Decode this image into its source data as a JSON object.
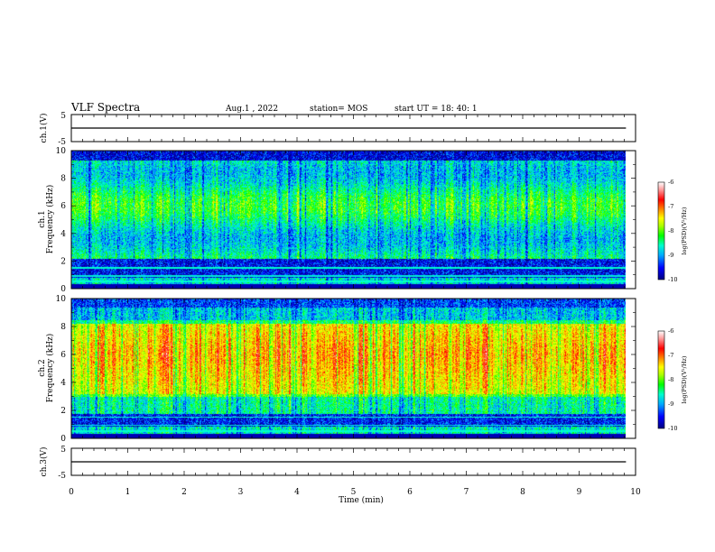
{
  "header": {
    "title": "VLF Spectra",
    "date": "Aug.1  , 2022",
    "station": "station= MOS",
    "start": "start  UT  =   18: 40: 1"
  },
  "chart_data": [
    {
      "type": "line",
      "id": "ch1-waveform",
      "ylabel": "ch.1(V)",
      "ylim": [
        -5,
        5
      ],
      "yticks": [
        "5",
        "-5"
      ],
      "x": [
        0,
        9.83
      ],
      "values": [
        0,
        0
      ]
    },
    {
      "type": "heatmap",
      "id": "ch1-spectrogram",
      "ylabel": [
        "ch.1",
        "Frequency (kHz)"
      ],
      "ylim": [
        0,
        10
      ],
      "yticks": [
        "0",
        "2",
        "4",
        "6",
        "8",
        "10"
      ],
      "x_range_min": [
        0,
        9.83
      ],
      "colorbar": {
        "label": "log(PSD)(V²/Hz)",
        "range": [
          -10,
          -6
        ],
        "ticks": [
          "-6",
          "-7",
          "-8",
          "-9",
          "-10"
        ],
        "colors": [
          "#000080",
          "#0000ff",
          "#00aaff",
          "#00ffcc",
          "#00ff00",
          "#aaff00",
          "#ffff00",
          "#ff8800",
          "#ff0000",
          "#ff9999",
          "#ffffff"
        ]
      }
    },
    {
      "type": "heatmap",
      "id": "ch2-spectrogram",
      "ylabel": [
        "ch.2",
        "Frequency (kHz)"
      ],
      "ylim": [
        0,
        10
      ],
      "yticks": [
        "0",
        "2",
        "4",
        "6",
        "8",
        "10"
      ],
      "x_range_min": [
        0,
        9.83
      ],
      "colorbar": {
        "label": "log(PSD)(V²/Hz)",
        "range": [
          -10,
          -6
        ],
        "ticks": [
          "-6",
          "-7",
          "-8",
          "-9",
          "-10"
        ],
        "colors": [
          "#000080",
          "#0000ff",
          "#00aaff",
          "#00ffcc",
          "#00ff00",
          "#aaff00",
          "#ffff00",
          "#ff8800",
          "#ff0000",
          "#ff9999",
          "#ffffff"
        ]
      }
    },
    {
      "type": "line",
      "id": "ch3-waveform",
      "ylabel": "ch.3(V)",
      "ylim": [
        -5,
        5
      ],
      "yticks": [
        "5",
        "-5"
      ],
      "x": [
        0,
        9.83
      ],
      "values": [
        0,
        0
      ]
    }
  ],
  "x_axis": {
    "label": "Time  (min)",
    "range": [
      0,
      10
    ],
    "ticks": [
      "0",
      "1",
      "2",
      "3",
      "4",
      "5",
      "6",
      "7",
      "8",
      "9",
      "10"
    ]
  }
}
